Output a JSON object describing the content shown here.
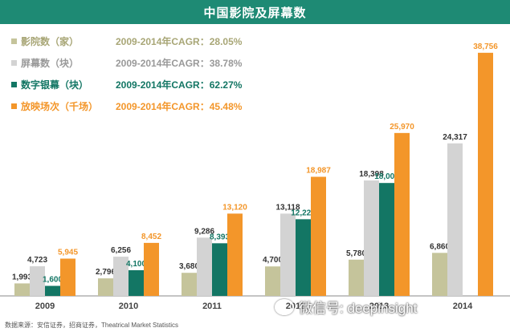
{
  "title": "中国影院及屏幕数",
  "legend": [
    {
      "label": "影院数（家）",
      "cagr": "2009-2014年CAGR：28.05%",
      "color": "#c5c49b"
    },
    {
      "label": "屏幕数（块）",
      "cagr": "2009-2014年CAGR：38.78%",
      "color": "#d3d3d3"
    },
    {
      "label": "数字银幕（块）",
      "cagr": "2009-2014年CAGR：62.27%",
      "color": "#137664"
    },
    {
      "label": "放映场次（千场）",
      "cagr": "2009-2014年CAGR：45.48%",
      "color": "#f3962a"
    }
  ],
  "footer": "数据来源：安信证券，招商证券，Theatrical Market Statistics",
  "watermark": "微信号: deepinsight",
  "chart_data": {
    "type": "bar",
    "categories": [
      "2009",
      "2010",
      "2011",
      "2012",
      "2013",
      "2014"
    ],
    "series": [
      {
        "name": "影院数（家）",
        "color": "#c5c49b",
        "label_color": "#333333",
        "values": [
          1993,
          2796,
          3680,
          4700,
          5780,
          6860
        ],
        "labels": [
          "1,993",
          "2,796",
          "3,680",
          "4,700",
          "5,780",
          "6,860"
        ]
      },
      {
        "name": "屏幕数（块）",
        "color": "#d3d3d3",
        "label_color": "#333333",
        "values": [
          4723,
          6256,
          9286,
          13118,
          18398,
          24317
        ],
        "labels": [
          "4,723",
          "6,256",
          "9,286",
          "13,118",
          "18,398",
          "24,317"
        ]
      },
      {
        "name": "数字银幕（块）",
        "color": "#137664",
        "label_color": "#137664",
        "values": [
          1600,
          4100,
          8393,
          12225,
          18000,
          null
        ],
        "labels": [
          "1,600",
          "4,100",
          "8,393",
          "12,225",
          "18,000",
          ""
        ]
      },
      {
        "name": "放映场次（千场）",
        "color": "#f3962a",
        "label_color": "#f3962a",
        "values": [
          5945,
          8452,
          13120,
          18987,
          25970,
          38756
        ],
        "labels": [
          "5,945",
          "8,452",
          "13,120",
          "18,987",
          "25,970",
          "38,756"
        ]
      }
    ]
  }
}
